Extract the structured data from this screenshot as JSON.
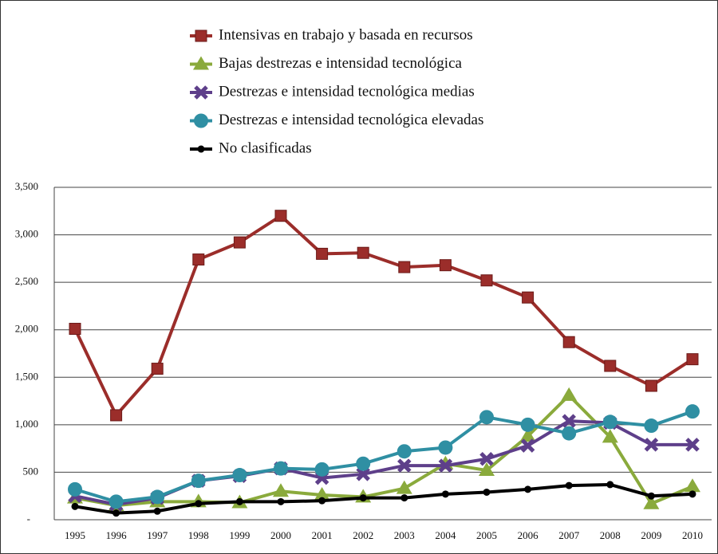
{
  "chart_data": {
    "type": "line",
    "categories": [
      "1995",
      "1996",
      "1997",
      "1998",
      "1999",
      "2000",
      "2001",
      "2002",
      "2003",
      "2004",
      "2005",
      "2006",
      "2007",
      "2008",
      "2009",
      "2010"
    ],
    "series": [
      {
        "name": "Intensivas en trabajo y basada en recursos",
        "color": "#9b2d2a",
        "marker": "square",
        "values": [
          2010,
          1100,
          1590,
          2740,
          2920,
          3200,
          2800,
          2810,
          2660,
          2680,
          2520,
          2340,
          1870,
          1620,
          1410,
          1690
        ]
      },
      {
        "name": "Bajas destrezas e intensidad tecnológica",
        "color": "#8aaa3c",
        "marker": "triangle",
        "values": [
          230,
          150,
          190,
          190,
          180,
          300,
          260,
          240,
          330,
          590,
          520,
          880,
          1310,
          870,
          170,
          350
        ]
      },
      {
        "name": "Destrezas e intensidad tecnológica medias",
        "color": "#5e3f8a",
        "marker": "cross",
        "values": [
          250,
          160,
          230,
          410,
          460,
          540,
          440,
          480,
          570,
          570,
          640,
          780,
          1040,
          1020,
          790,
          790
        ]
      },
      {
        "name": "Destrezas e intensidad tecnológica elevadas",
        "color": "#2f8fa3",
        "marker": "circle",
        "values": [
          320,
          190,
          240,
          410,
          470,
          540,
          530,
          590,
          720,
          760,
          1080,
          1000,
          910,
          1030,
          990,
          1140
        ]
      },
      {
        "name": "No clasificadas",
        "color": "#000000",
        "marker": "dot",
        "values": [
          140,
          70,
          90,
          170,
          190,
          190,
          200,
          230,
          230,
          270,
          290,
          320,
          360,
          370,
          250,
          270
        ]
      }
    ],
    "ylim": [
      0,
      3500
    ],
    "yticks": [
      {
        "value": 0,
        "label": "-"
      },
      500,
      {
        "value": 1000,
        "label": "1,000"
      },
      {
        "value": 1500,
        "label": "1,500"
      },
      {
        "value": 2000,
        "label": "2,000"
      },
      {
        "value": 2500,
        "label": "2,500"
      },
      {
        "value": 3000,
        "label": "3,000"
      },
      {
        "value": 3500,
        "label": "3,500"
      }
    ],
    "grid": true
  }
}
